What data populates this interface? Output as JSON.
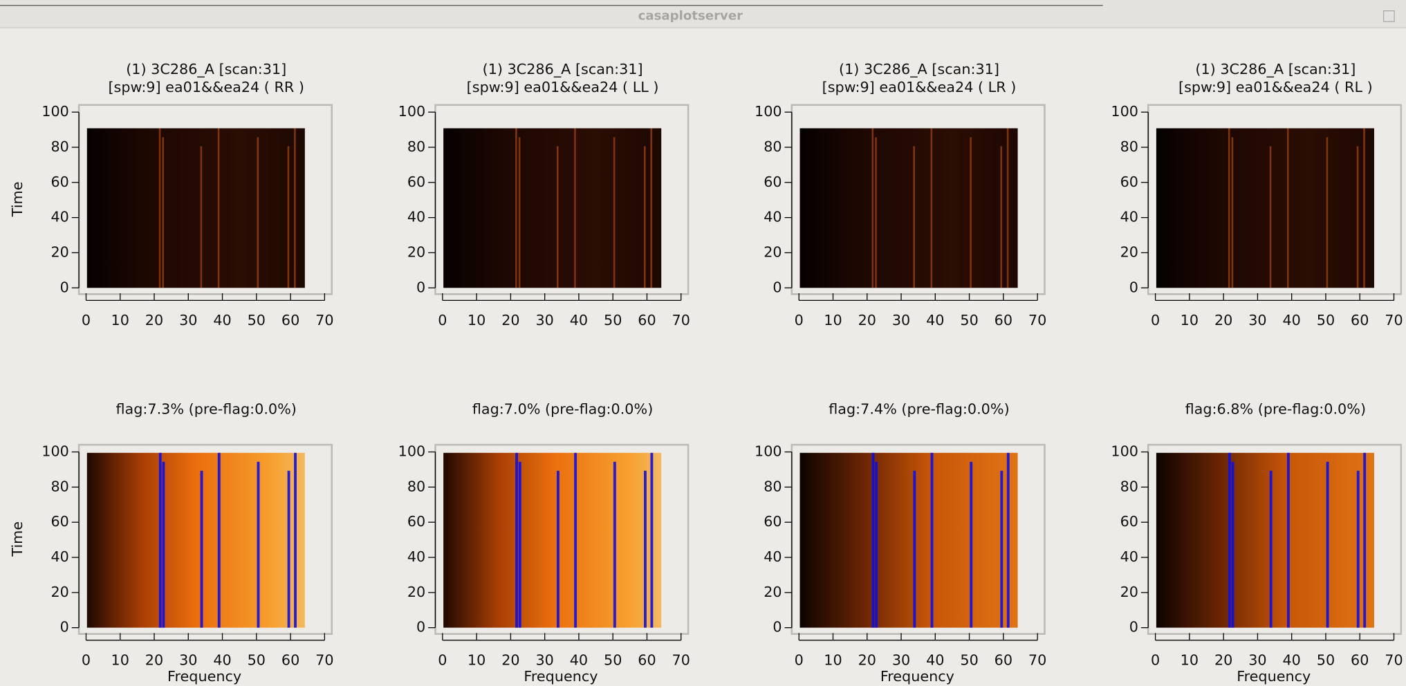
{
  "window": {
    "title": "casaplotserver"
  },
  "axes": {
    "xticks": [
      0,
      10,
      20,
      30,
      40,
      50,
      60,
      70
    ],
    "yticks": [
      0,
      20,
      40,
      60,
      80,
      100
    ]
  },
  "panels": [
    {
      "title": [
        "(1) 3C286_A  [scan:31]",
        "[spw:9] ea01&&ea24  ( RR )"
      ],
      "ylabel": "Time"
    },
    {
      "title": [
        "(1) 3C286_A  [scan:31]",
        "[spw:9] ea01&&ea24  ( LL )"
      ]
    },
    {
      "title": [
        "(1) 3C286_A  [scan:31]",
        "[spw:9] ea01&&ea24  ( LR )"
      ]
    },
    {
      "title": [
        "(1) 3C286_A  [scan:31]",
        "[spw:9] ea01&&ea24  ( RL )"
      ]
    },
    {
      "title": [
        "flag:7.3% (pre-flag:0.0%)"
      ],
      "ylabel": "Time",
      "xlabel": "Frequency"
    },
    {
      "title": [
        "flag:7.0% (pre-flag:0.0%)"
      ],
      "xlabel": "Frequency"
    },
    {
      "title": [
        "flag:7.4% (pre-flag:0.0%)"
      ],
      "xlabel": "Frequency"
    },
    {
      "title": [
        "flag:6.8% (pre-flag:0.0%)"
      ],
      "xlabel": "Frequency"
    }
  ]
}
